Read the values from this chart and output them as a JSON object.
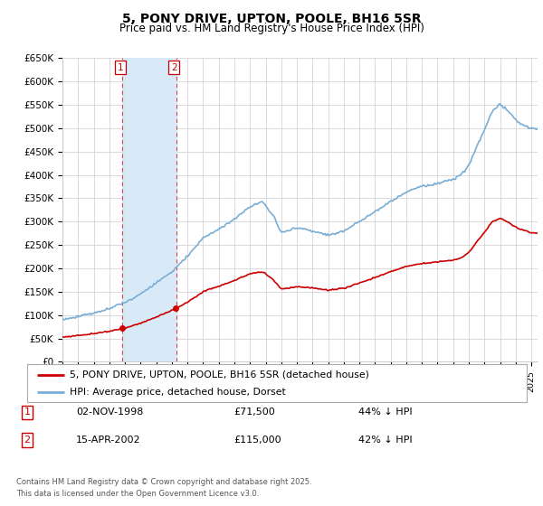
{
  "title": "5, PONY DRIVE, UPTON, POOLE, BH16 5SR",
  "subtitle": "Price paid vs. HM Land Registry's House Price Index (HPI)",
  "ylim": [
    0,
    650000
  ],
  "yticks": [
    0,
    50000,
    100000,
    150000,
    200000,
    250000,
    300000,
    350000,
    400000,
    450000,
    500000,
    550000,
    600000,
    650000
  ],
  "ytick_labels": [
    "£0",
    "£50K",
    "£100K",
    "£150K",
    "£200K",
    "£250K",
    "£300K",
    "£350K",
    "£400K",
    "£450K",
    "£500K",
    "£550K",
    "£600K",
    "£650K"
  ],
  "purchase1_date": 1998.84,
  "purchase1_price": 71500,
  "purchase1_text": "02-NOV-1998",
  "purchase1_amount": "£71,500",
  "purchase1_hpi": "44% ↓ HPI",
  "purchase2_date": 2002.29,
  "purchase2_price": 115000,
  "purchase2_text": "15-APR-2002",
  "purchase2_amount": "£115,000",
  "purchase2_hpi": "42% ↓ HPI",
  "red_color": "#cc0000",
  "blue_color": "#7aadd4",
  "shade_color": "#d8eaf8",
  "grid_color": "#cccccc",
  "background_color": "#ffffff",
  "legend_label_red": "5, PONY DRIVE, UPTON, POOLE, BH16 5SR (detached house)",
  "legend_label_blue": "HPI: Average price, detached house, Dorset",
  "footer": "Contains HM Land Registry data © Crown copyright and database right 2025.\nThis data is licensed under the Open Government Licence v3.0.",
  "xstart": 1995,
  "xend": 2025.4
}
